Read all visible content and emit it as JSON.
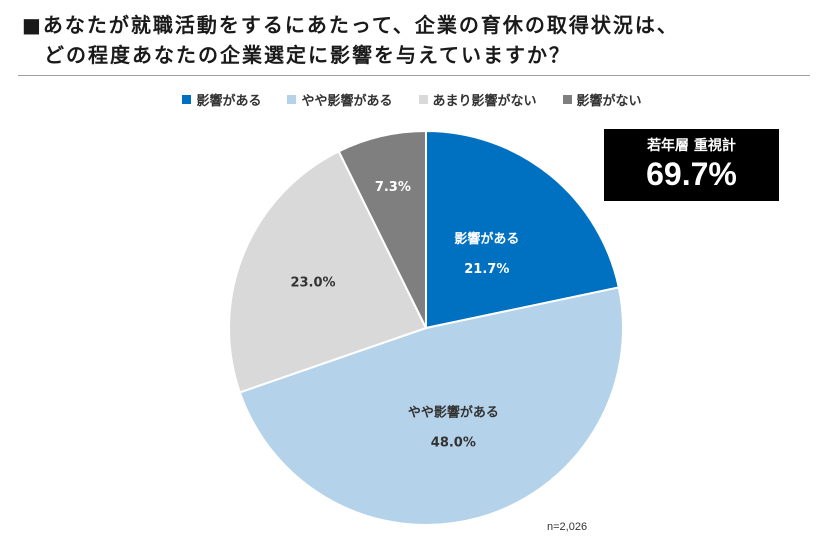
{
  "title": {
    "line1": "■あなたが就職活動をするにあたって、企業の育休の取得状況は、",
    "line2": "どの程度あなたの企業選定に影響を与えていますか？"
  },
  "callout": {
    "label": "若年層 重視計",
    "value": "69.7%"
  },
  "note": "n=2,026",
  "chart_data": {
    "type": "pie",
    "title": "あなたが就職活動をするにあたって、企業の育休の取得状況は、どの程度あなたの企業選定に影響を与えていますか？",
    "legend_position": "top",
    "start_angle_deg": 0,
    "direction": "clockwise",
    "slices": [
      {
        "label": "影響がある",
        "value": 21.7,
        "value_label": "21.7%",
        "color": "#0070c0",
        "text_color": "#ffffff",
        "show_name": true
      },
      {
        "label": "やや影響がある",
        "value": 48.0,
        "value_label": "48.0%",
        "color": "#b4d3ea",
        "text_color": "#333333",
        "show_name": true
      },
      {
        "label": "あまり影響がない",
        "value": 23.0,
        "value_label": "23.0%",
        "color": "#d9d9d9",
        "text_color": "#333333",
        "show_name": false
      },
      {
        "label": "影響がない",
        "value": 7.3,
        "value_label": "7.3%",
        "color": "#7f7f7f",
        "text_color": "#ffffff",
        "show_name": false
      }
    ]
  }
}
